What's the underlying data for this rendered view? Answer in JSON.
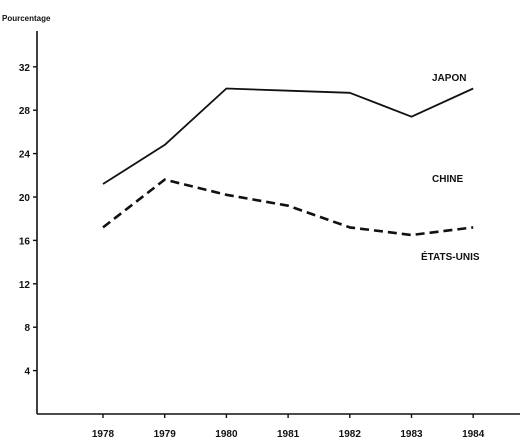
{
  "chart_data": {
    "type": "line",
    "ylabel": "Pourcentage",
    "x": [
      "1978",
      "1979",
      "1980",
      "1981",
      "1982",
      "1983",
      "1984"
    ],
    "yticks": [
      4,
      8,
      12,
      16,
      20,
      24,
      28,
      32
    ],
    "ylim": [
      0,
      35
    ],
    "series": [
      {
        "name": "JAPON",
        "style": "solid",
        "values": [
          21.2,
          24.8,
          30.0,
          29.8,
          29.6,
          27.4,
          30.0
        ]
      },
      {
        "name": "ÉTATS-UNIS",
        "style": "dashed",
        "values": [
          17.2,
          21.6,
          20.2,
          19.2,
          17.2,
          16.5,
          17.2
        ]
      }
    ],
    "annotations": [
      "JAPON",
      "CHINE",
      "ÉTATS-UNIS"
    ],
    "grid": false,
    "colors": {
      "ink": "#111111",
      "background": "#ffffff"
    }
  }
}
